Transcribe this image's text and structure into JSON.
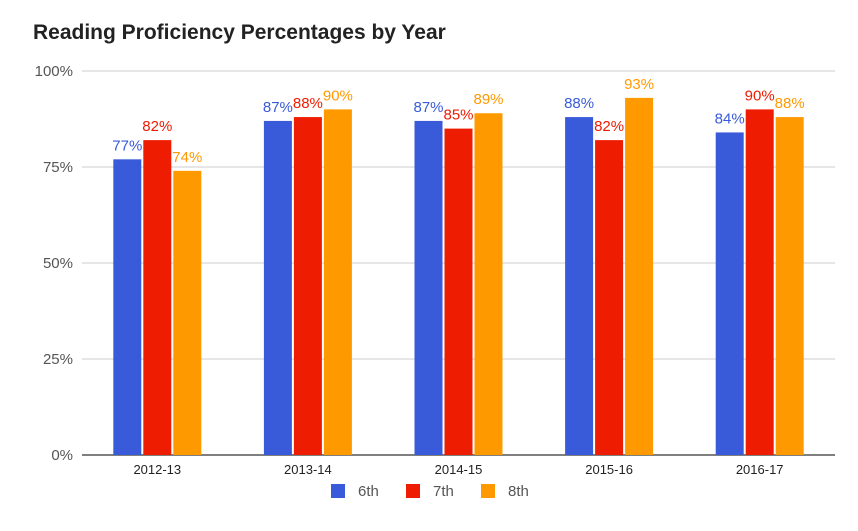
{
  "chart_data": {
    "type": "bar",
    "title": "Reading Proficiency Percentages by Year",
    "xlabel": "",
    "ylabel": "",
    "categories": [
      "2012-13",
      "2013-14",
      "2014-15",
      "2015-16",
      "2016-17"
    ],
    "series": [
      {
        "name": "6th",
        "color": "#3a5bd9",
        "values": [
          77,
          87,
          87,
          88,
          84
        ],
        "labels": [
          "77%",
          "87%",
          "87%",
          "88%",
          "84%"
        ]
      },
      {
        "name": "7th",
        "color": "#ee1c00",
        "values": [
          82,
          88,
          85,
          82,
          90
        ],
        "labels": [
          "82%",
          "88%",
          "85%",
          "82%",
          "90%"
        ]
      },
      {
        "name": "8th",
        "color": "#ff9900",
        "values": [
          74,
          90,
          89,
          93,
          88
        ],
        "labels": [
          "74%",
          "90%",
          "89%",
          "93%",
          "88%"
        ]
      }
    ],
    "ylim": [
      0,
      100
    ],
    "yticks": [
      0,
      25,
      50,
      75,
      100
    ],
    "ytick_labels": [
      "0%",
      "25%",
      "50%",
      "75%",
      "100%"
    ],
    "grid": true,
    "legend": "bottom"
  }
}
